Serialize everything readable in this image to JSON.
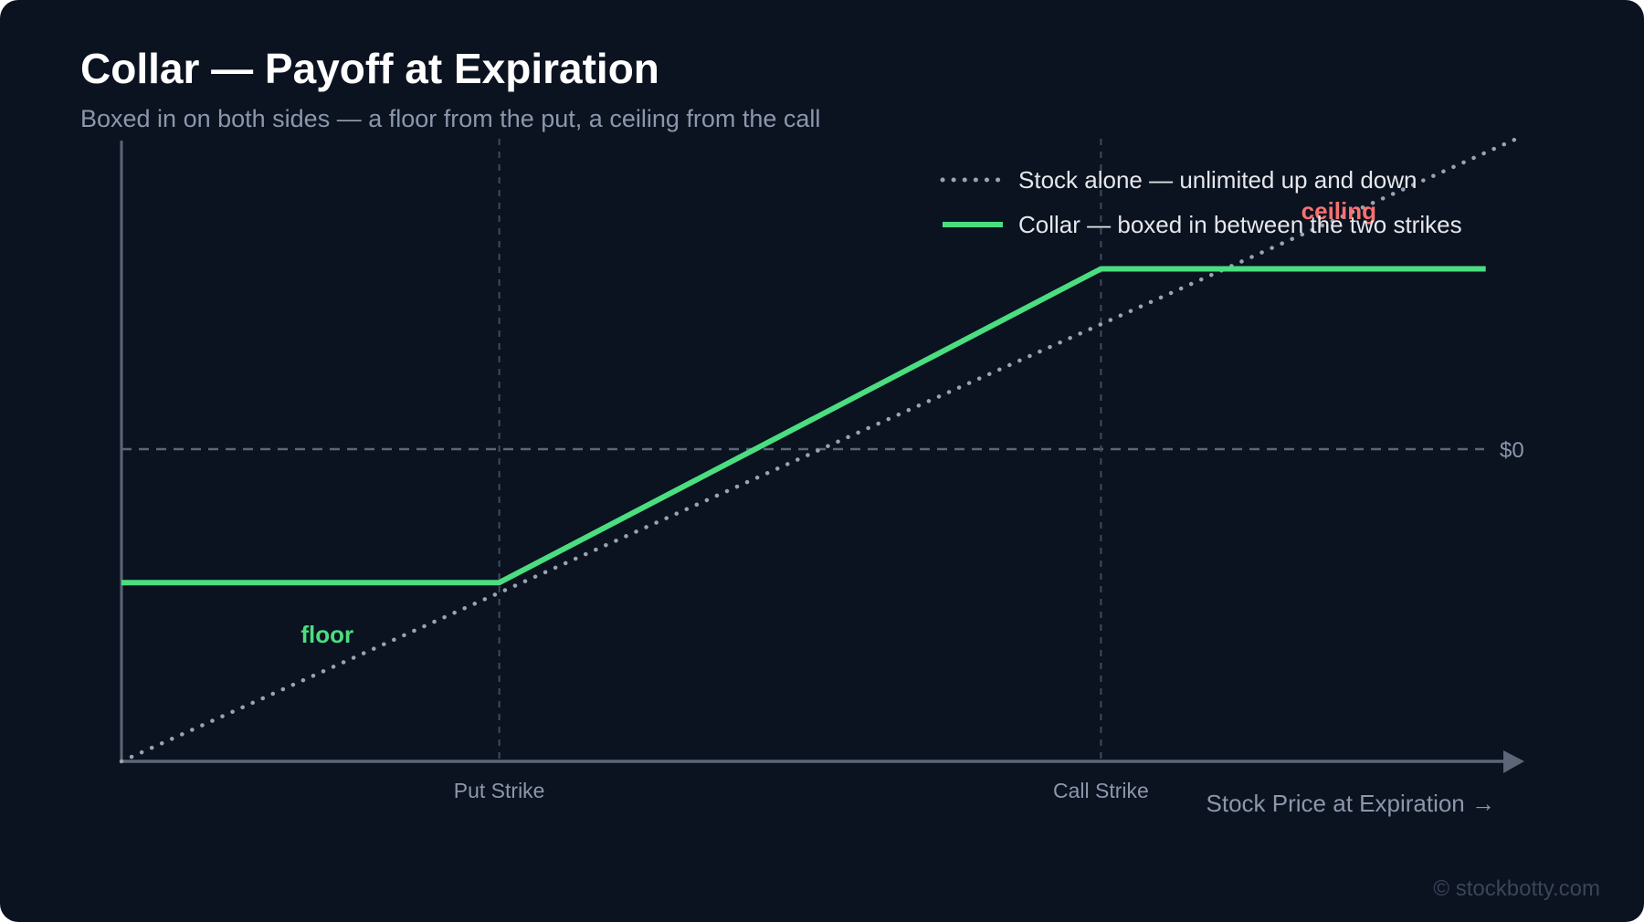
{
  "header": {
    "title": "Collar — Payoff at Expiration",
    "subtitle": "Boxed in on both sides — a floor from the put, a ceiling from the call"
  },
  "watermark": "© stockbotty.com",
  "colors": {
    "background": "#0b1220",
    "collar": "#4ade80",
    "stock": "#9aa3b2",
    "axis": "#5b6678",
    "ceiling_label": "#f87171",
    "floor_label": "#4ade80",
    "muted_text": "#8b97ab"
  },
  "chart_data": {
    "type": "line",
    "title": "Collar — Payoff at Expiration",
    "xlabel": "Stock Price at Expiration →",
    "ylabel": "",
    "xlim": [
      0,
      100
    ],
    "ylim": [
      -40,
      40
    ],
    "grid": false,
    "legend_position": "top-right",
    "reference_lines": [
      {
        "axis": "y",
        "value": 0,
        "label": "$0",
        "style": "dashed"
      },
      {
        "axis": "x",
        "value": 27,
        "label": "Put Strike",
        "style": "dashed"
      },
      {
        "axis": "x",
        "value": 70,
        "label": "Call Strike",
        "style": "dashed"
      }
    ],
    "series": [
      {
        "name": "Stock alone — unlimited up and down",
        "style": "dotted",
        "points": [
          [
            0,
            -40
          ],
          [
            100,
            40
          ]
        ]
      },
      {
        "name": "Collar — boxed in between the two strikes",
        "style": "solid",
        "points": [
          [
            0,
            -17.1
          ],
          [
            27,
            -17.1
          ],
          [
            70,
            23.1
          ],
          [
            97.5,
            23.1
          ]
        ]
      }
    ],
    "annotations": [
      {
        "text": "ceiling",
        "x": 87,
        "y": 29.5,
        "color": "#f87171"
      },
      {
        "text": "floor",
        "x": 14.7,
        "y": -24.8,
        "color": "#4ade80"
      }
    ]
  }
}
